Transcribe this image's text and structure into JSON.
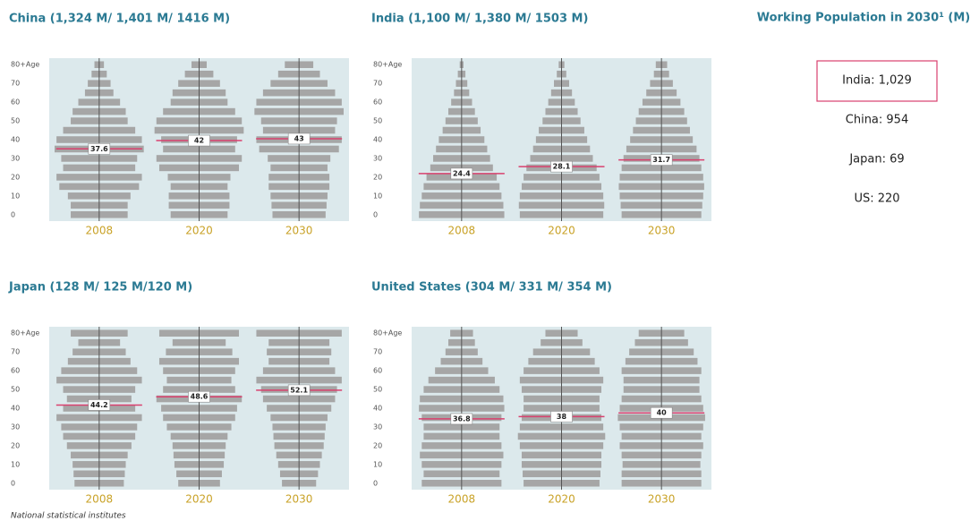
{
  "chart_data": [
    {
      "type": "pyramid",
      "title": "China (1,324 M/ 1,401 M/ 1416 M)",
      "ylim": [
        0,
        85
      ],
      "yticks": [
        0,
        10,
        20,
        30,
        40,
        50,
        60,
        70,
        {
          "value": 80,
          "label": "80+Age"
        }
      ],
      "color": "#a6a6a6",
      "median_color": "#d9406e",
      "panels": [
        {
          "year": "2008",
          "median": 37.6,
          "values": [
            30,
            30,
            33,
            42,
            45,
            38,
            40,
            47,
            45,
            38,
            30,
            28,
            22,
            15,
            12,
            8,
            5
          ]
        },
        {
          "year": "2020",
          "median": 42,
          "values": [
            30,
            32,
            32,
            30,
            33,
            42,
            45,
            38,
            40,
            47,
            45,
            38,
            30,
            28,
            22,
            15,
            8
          ]
        },
        {
          "year": "2030",
          "median": 43,
          "values": [
            28,
            29,
            30,
            32,
            32,
            30,
            33,
            42,
            45,
            38,
            40,
            47,
            45,
            38,
            30,
            22,
            15
          ]
        }
      ]
    },
    {
      "type": "pyramid",
      "title": "India (1,100 M/ 1,380 M/ 1503 M)",
      "ylim": [
        0,
        85
      ],
      "yticks": [
        0,
        10,
        20,
        30,
        40,
        50,
        60,
        70,
        {
          "value": 80,
          "label": "80+Age"
        }
      ],
      "color": "#a6a6a6",
      "median_color": "#d9406e",
      "panels": [
        {
          "year": "2008",
          "median": 24.4,
          "values": [
            45,
            44,
            42,
            40,
            37,
            33,
            30,
            27,
            24,
            20,
            17,
            14,
            11,
            8,
            6,
            4,
            2
          ]
        },
        {
          "year": "2020",
          "median": 28.1,
          "values": [
            44,
            45,
            44,
            42,
            40,
            37,
            33,
            30,
            27,
            24,
            20,
            17,
            14,
            11,
            8,
            5,
            3
          ]
        },
        {
          "year": "2030",
          "median": 31.7,
          "values": [
            42,
            43,
            44,
            45,
            44,
            42,
            40,
            37,
            33,
            30,
            27,
            24,
            20,
            16,
            12,
            8,
            6
          ]
        }
      ]
    },
    {
      "type": "pyramid",
      "title": "Japan (128 M/ 125 M/120 M)",
      "ylim": [
        0,
        85
      ],
      "yticks": [
        0,
        10,
        20,
        30,
        40,
        50,
        60,
        70,
        {
          "value": 80,
          "label": "80+Age"
        }
      ],
      "color": "#a6a6a6",
      "median_color": "#d9406e",
      "panels": [
        {
          "year": "2008",
          "median": 44.2,
          "values": [
            26,
            27,
            28,
            30,
            34,
            38,
            40,
            45,
            38,
            34,
            38,
            45,
            40,
            33,
            28,
            22,
            30
          ]
        },
        {
          "year": "2020",
          "median": 48.6,
          "values": [
            22,
            24,
            26,
            27,
            28,
            30,
            34,
            38,
            40,
            45,
            38,
            34,
            38,
            42,
            35,
            28,
            42
          ]
        },
        {
          "year": "2030",
          "median": 52.1,
          "values": [
            18,
            20,
            22,
            24,
            26,
            27,
            28,
            30,
            34,
            38,
            40,
            45,
            38,
            32,
            34,
            32,
            45
          ]
        }
      ]
    },
    {
      "type": "pyramid",
      "title": "United States (304 M/ 331 M/ 354 M)",
      "ylim": [
        0,
        85
      ],
      "yticks": [
        0,
        10,
        20,
        30,
        40,
        50,
        60,
        70,
        {
          "value": 80,
          "label": "80+Age"
        }
      ],
      "color": "#a6a6a6",
      "median_color": "#d9406e",
      "panels": [
        {
          "year": "2008",
          "median": 36.8,
          "values": [
            42,
            40,
            42,
            44,
            42,
            40,
            40,
            42,
            45,
            44,
            40,
            35,
            28,
            22,
            17,
            14,
            12
          ]
        },
        {
          "year": "2020",
          "median": 38,
          "values": [
            40,
            41,
            42,
            42,
            44,
            46,
            44,
            42,
            40,
            40,
            42,
            44,
            40,
            35,
            30,
            22,
            17
          ]
        },
        {
          "year": "2030",
          "median": 40,
          "values": [
            42,
            42,
            41,
            42,
            44,
            42,
            44,
            46,
            44,
            42,
            40,
            40,
            42,
            38,
            34,
            28,
            24
          ]
        }
      ]
    }
  ],
  "sidebar": {
    "title": "Working Population in 2030¹ (M)",
    "items": [
      "India: 1,029",
      "China: 954",
      "Japan: 69",
      "US: 220"
    ],
    "highlight": 0
  },
  "source": "National statistical institutes"
}
